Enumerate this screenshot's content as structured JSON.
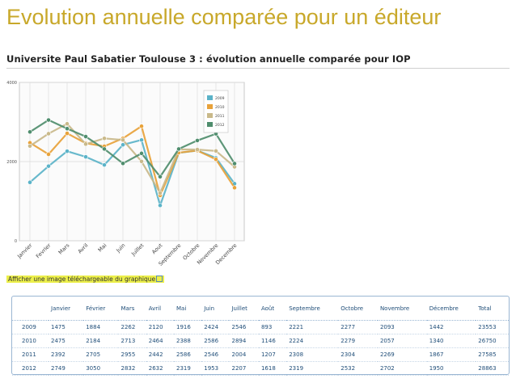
{
  "slide": {
    "title": "Evolution annuelle comparée pour un éditeur",
    "chart_heading": "Universite Paul Sabatier Toulouse 3 : évolution annuelle comparée pour IOP",
    "download_link": "Afficher une image téléchargeable du graphique"
  },
  "colors": {
    "title": "#c8a82a",
    "2009": "#5bb3c8",
    "2010": "#e8a23a",
    "2011": "#c9b98a",
    "2012": "#4f8d6d"
  },
  "chart_data": {
    "type": "line",
    "x": [
      "Janvier",
      "Fevrier",
      "Mars",
      "Avril",
      "Mai",
      "Juin",
      "Juillet",
      "Aout",
      "Septembre",
      "Octobre",
      "Novembre",
      "Decembre"
    ],
    "ylim": [
      0,
      4000
    ],
    "yticks": [
      0,
      2000,
      4000
    ],
    "legend": "top-right",
    "grid": true,
    "series": [
      {
        "name": "2009",
        "values": [
          1475,
          1884,
          2262,
          2120,
          1916,
          2424,
          2546,
          893,
          2221,
          2277,
          2093,
          1442
        ]
      },
      {
        "name": "2010",
        "values": [
          2475,
          2184,
          2713,
          2464,
          2388,
          2586,
          2894,
          1146,
          2224,
          2279,
          2057,
          1340
        ]
      },
      {
        "name": "2011",
        "values": [
          2392,
          2705,
          2955,
          2442,
          2586,
          2546,
          2004,
          1207,
          2308,
          2304,
          2269,
          1867
        ]
      },
      {
        "name": "2012",
        "values": [
          2749,
          3050,
          2832,
          2632,
          2319,
          1953,
          2207,
          1618,
          2319,
          2532,
          2702,
          1950
        ]
      }
    ]
  },
  "table": {
    "headers": [
      "",
      "Janvier",
      "Février",
      "Mars",
      "Avril",
      "Mai",
      "Juin",
      "Juillet",
      "Août",
      "Septembre",
      "Octobre",
      "Novembre",
      "Décembre",
      "Total"
    ],
    "rows": [
      [
        "2009",
        "1475",
        "1884",
        "2262",
        "2120",
        "1916",
        "2424",
        "2546",
        "893",
        "2221",
        "2277",
        "2093",
        "1442",
        "23553"
      ],
      [
        "2010",
        "2475",
        "2184",
        "2713",
        "2464",
        "2388",
        "2586",
        "2894",
        "1146",
        "2224",
        "2279",
        "2057",
        "1340",
        "26750"
      ],
      [
        "2011",
        "2392",
        "2705",
        "2955",
        "2442",
        "2586",
        "2546",
        "2004",
        "1207",
        "2308",
        "2304",
        "2269",
        "1867",
        "27585"
      ],
      [
        "2012",
        "2749",
        "3050",
        "2832",
        "2632",
        "2319",
        "1953",
        "2207",
        "1618",
        "2319",
        "2532",
        "2702",
        "1950",
        "28863"
      ]
    ]
  }
}
